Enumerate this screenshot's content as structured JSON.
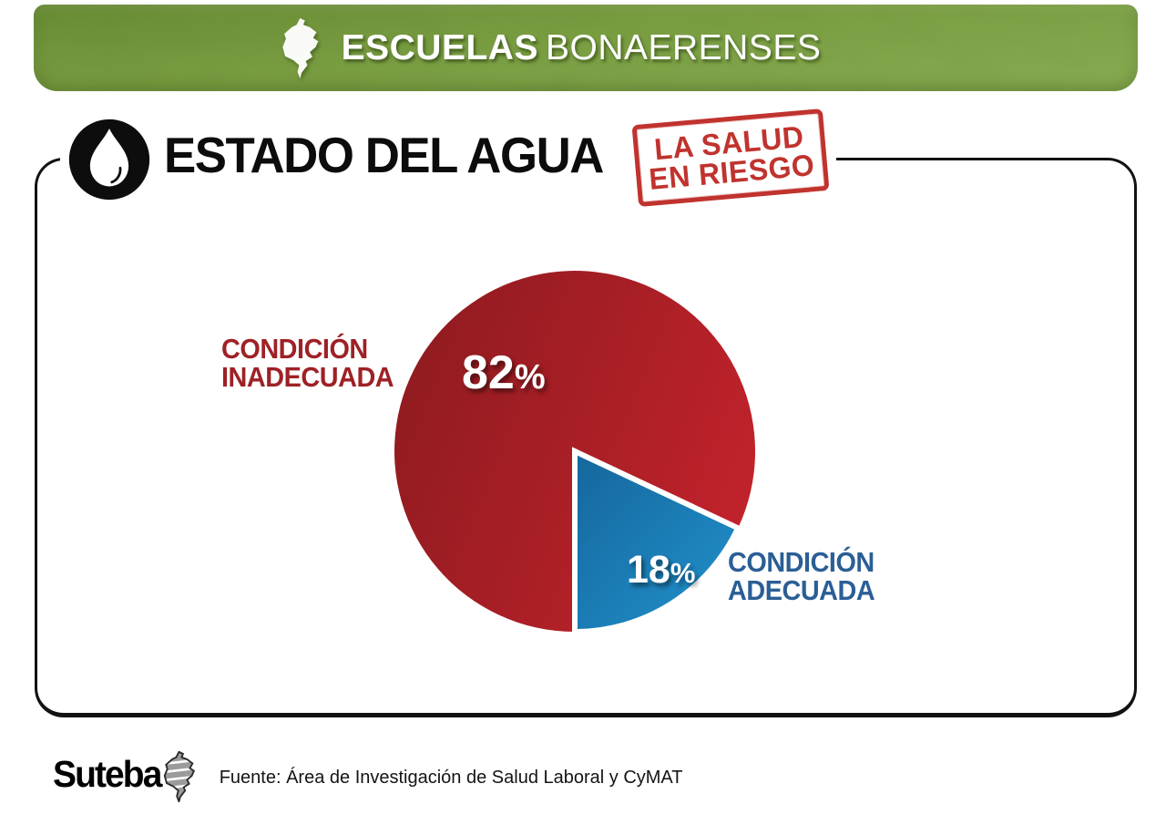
{
  "banner": {
    "brand_strong": "ESCUELAS",
    "brand_light": "BONAERENSES",
    "background_color": "#7da144"
  },
  "title": {
    "text": "ESTADO DEL AGUA",
    "icon": "water-drop-icon"
  },
  "stamp": {
    "lines": [
      "LA SALUD",
      "EN RIESGO"
    ],
    "color": "#c0332e"
  },
  "chart_data": {
    "type": "pie",
    "title": "ESTADO DEL AGUA",
    "units": "percent",
    "start_angle_deg": 90,
    "direction": "clockwise",
    "legend_position": "inline-labels",
    "slices": [
      {
        "label": "CONDICIÓN INADECUADA",
        "label_lines": [
          "CONDICIÓN",
          "INADECUADA"
        ],
        "value": 82,
        "value_label": "82",
        "value_suffix": "%",
        "color_from": "#8e1b20",
        "color_to": "#c1222b",
        "label_color": "#9e2126"
      },
      {
        "label": "CONDICIÓN ADECUADA",
        "label_lines": [
          "CONDICIÓN",
          "ADECUADA"
        ],
        "value": 18,
        "value_label": "18",
        "value_suffix": "%",
        "color_from": "#15679c",
        "color_to": "#2191cd",
        "label_color": "#2b5e95"
      }
    ]
  },
  "footer": {
    "logo_text": "Suteba",
    "source_text": "Fuente: Área de Investigación de Salud Laboral y CyMAT"
  }
}
